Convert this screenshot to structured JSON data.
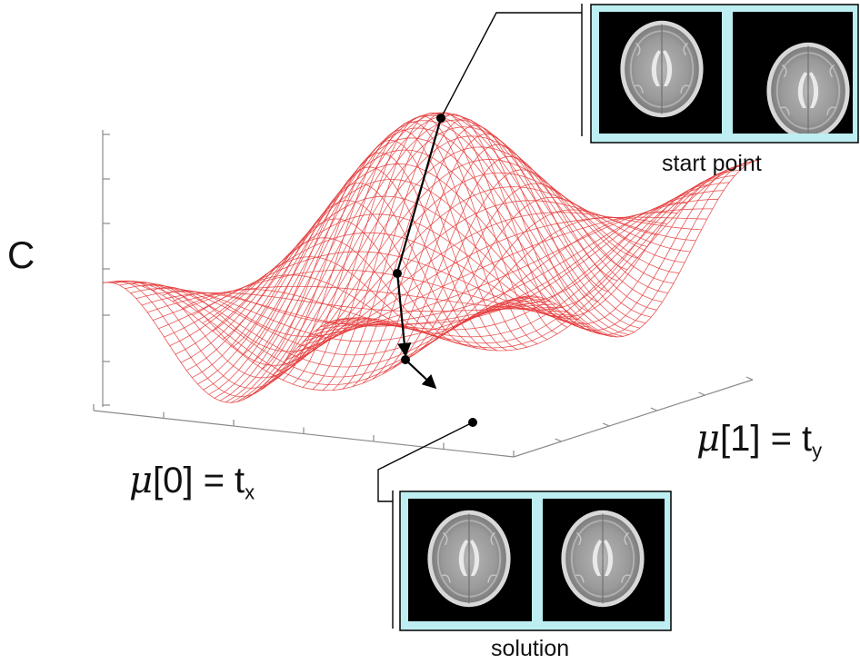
{
  "axes": {
    "z_label": "C",
    "x_label": {
      "mu": "μ",
      "rest": "[0] = t",
      "sub": "x"
    },
    "y_label": {
      "mu": "μ",
      "rest": "[1] = t",
      "sub": "y"
    }
  },
  "insets": {
    "start": {
      "caption": "start point",
      "frame_color": "#bdeef2"
    },
    "solution": {
      "caption": "solution",
      "frame_color": "#bdeef2"
    }
  },
  "colors": {
    "mesh": "#e53b3b",
    "path": "#000000",
    "axes": "#8a8a8a",
    "slice_background": "#000000"
  }
}
